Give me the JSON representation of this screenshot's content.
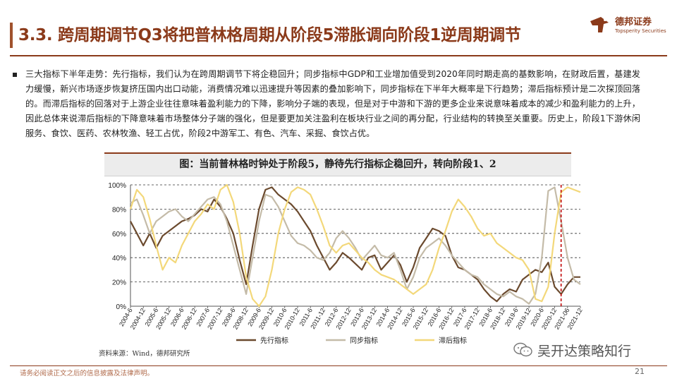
{
  "header": {
    "title": "3.3. 跨周期调节Q3将把普林格周期从阶段5滞胀调向阶段1逆周期调节",
    "logo_cn": "德邦证券",
    "logo_en": "Topsperity Securities"
  },
  "body": {
    "paragraph": "三大指标下半年走势：先行指标，我们认为在跨周期调节下将企稳回升；同步指标中GDP和工业增加值受到2020年同时期走高的基数影响，在财政后置，基建发力缓慢，新兴市场逐步恢复挤压国内出口动能，消费情况难以迅速提升等因素的叠加影响下，同步指标在下半年大概率是下行趋势；滞后指标预计是二次探顶回落的。而滞后指标的回落对于上游企业往往意味着盈利能力的下降，影响分子端的表现，但是对于中游和下游的更多企业来说意味着成本的减少和盈利能力的上升，因此总体来说滞后指标的下降意味着市场整体分子端的强化，但是要更加关注盈利在板块行业之间的再分配，行业结构的转换至关重要。历史上，阶段1下游休闲服务、食饮、医药、农林牧渔、轻工占优，阶段2中游军工、有色、汽车、采掘、食饮占优。"
  },
  "figure": {
    "title": "图：当前普林格时钟处于阶段5，静待先行指标企稳回升，转向阶段1、2",
    "source": "资料来源：Wind，德邦研究所"
  },
  "chart_data": {
    "type": "line",
    "title": "图：当前普林格时钟处于阶段5，静待先行指标企稳回升，转向阶段1、2",
    "ylim": [
      0,
      100
    ],
    "yticks": [
      "0%",
      "20%",
      "40%",
      "60%",
      "80%",
      "100%"
    ],
    "xlim": [
      2004.5,
      2022.0
    ],
    "xticks": [
      "2004-6",
      "2004-12",
      "2005-6",
      "2005-12",
      "2006-6",
      "2006-12",
      "2007-6",
      "2007-12",
      "2008-6",
      "2008-12",
      "2009-6",
      "2009-12",
      "2010-6",
      "2010-12",
      "2011-6",
      "2011-12",
      "2012-6",
      "2012-12",
      "2013-6",
      "2013-12",
      "2014-6",
      "2014-12",
      "2015-6",
      "2015-12",
      "2016-6",
      "2016-12",
      "2017-6",
      "2017-12",
      "2018-6",
      "2018-12",
      "2019-6",
      "2019-12",
      "2020-6",
      "2020-12",
      "2021-06",
      "2021-12"
    ],
    "grid": "horizontal dashed",
    "legend": "bottom",
    "marker_line": {
      "x": 2021.25,
      "style": "red dashed"
    },
    "series": [
      {
        "name": "先行指标",
        "color": "#6b4a2e",
        "x": [
          2004.5,
          2004.75,
          2005.0,
          2005.25,
          2005.5,
          2005.75,
          2006.0,
          2006.25,
          2006.5,
          2006.75,
          2007.0,
          2007.25,
          2007.5,
          2007.75,
          2008.0,
          2008.25,
          2008.5,
          2008.75,
          2009.0,
          2009.25,
          2009.5,
          2009.75,
          2010.0,
          2010.25,
          2010.5,
          2010.75,
          2011.0,
          2011.25,
          2011.5,
          2011.75,
          2012.0,
          2012.25,
          2012.5,
          2012.75,
          2013.0,
          2013.25,
          2013.5,
          2013.75,
          2014.0,
          2014.25,
          2014.5,
          2014.75,
          2015.0,
          2015.25,
          2015.5,
          2015.75,
          2016.0,
          2016.25,
          2016.5,
          2016.75,
          2017.0,
          2017.25,
          2017.5,
          2017.75,
          2018.0,
          2018.25,
          2018.5,
          2018.75,
          2019.0,
          2019.25,
          2019.5,
          2019.75,
          2020.0,
          2020.25,
          2020.5,
          2020.75,
          2021.0,
          2021.25,
          2021.5,
          2021.75,
          2022.0
        ],
        "values": [
          70,
          60,
          50,
          60,
          48,
          58,
          62,
          66,
          70,
          72,
          75,
          80,
          78,
          88,
          82,
          72,
          60,
          38,
          18,
          50,
          80,
          96,
          98,
          92,
          88,
          84,
          78,
          70,
          62,
          50,
          40,
          30,
          36,
          44,
          40,
          35,
          30,
          40,
          42,
          30,
          36,
          42,
          34,
          20,
          32,
          48,
          56,
          64,
          62,
          58,
          42,
          32,
          30,
          26,
          22,
          14,
          8,
          4,
          10,
          14,
          12,
          22,
          26,
          30,
          28,
          36,
          16,
          10,
          18,
          24,
          24
        ]
      },
      {
        "name": "同步指标",
        "color": "#c4bba8",
        "x": [
          2004.5,
          2004.75,
          2005.0,
          2005.25,
          2005.5,
          2005.75,
          2006.0,
          2006.25,
          2006.5,
          2006.75,
          2007.0,
          2007.25,
          2007.5,
          2007.75,
          2008.0,
          2008.25,
          2008.5,
          2008.75,
          2009.0,
          2009.25,
          2009.5,
          2009.75,
          2010.0,
          2010.25,
          2010.5,
          2010.75,
          2011.0,
          2011.25,
          2011.5,
          2011.75,
          2012.0,
          2012.25,
          2012.5,
          2012.75,
          2013.0,
          2013.25,
          2013.5,
          2013.75,
          2014.0,
          2014.25,
          2014.5,
          2014.75,
          2015.0,
          2015.25,
          2015.5,
          2015.75,
          2016.0,
          2016.25,
          2016.5,
          2016.75,
          2017.0,
          2017.25,
          2017.5,
          2017.75,
          2018.0,
          2018.25,
          2018.5,
          2018.75,
          2019.0,
          2019.25,
          2019.5,
          2019.75,
          2020.0,
          2020.25,
          2020.5,
          2020.75,
          2021.0,
          2021.25,
          2021.5,
          2021.75,
          2022.0
        ],
        "values": [
          85,
          88,
          75,
          60,
          70,
          74,
          78,
          80,
          74,
          70,
          76,
          82,
          88,
          90,
          84,
          70,
          50,
          30,
          10,
          40,
          70,
          92,
          90,
          82,
          70,
          58,
          52,
          50,
          46,
          40,
          38,
          44,
          56,
          62,
          56,
          48,
          38,
          44,
          50,
          42,
          40,
          44,
          30,
          14,
          24,
          40,
          48,
          52,
          56,
          50,
          42,
          36,
          30,
          26,
          24,
          18,
          14,
          10,
          8,
          12,
          8,
          6,
          2,
          10,
          40,
          95,
          98,
          70,
          40,
          22,
          18
        ]
      },
      {
        "name": "滞后指标",
        "color": "#f3d87a",
        "x": [
          2004.5,
          2004.75,
          2005.0,
          2005.25,
          2005.5,
          2005.75,
          2006.0,
          2006.25,
          2006.5,
          2006.75,
          2007.0,
          2007.25,
          2007.5,
          2007.75,
          2008.0,
          2008.25,
          2008.5,
          2008.75,
          2009.0,
          2009.25,
          2009.5,
          2009.75,
          2010.0,
          2010.25,
          2010.5,
          2010.75,
          2011.0,
          2011.25,
          2011.5,
          2011.75,
          2012.0,
          2012.25,
          2012.5,
          2012.75,
          2013.0,
          2013.25,
          2013.5,
          2013.75,
          2014.0,
          2014.25,
          2014.5,
          2014.75,
          2015.0,
          2015.25,
          2015.5,
          2015.75,
          2016.0,
          2016.25,
          2016.5,
          2016.75,
          2017.0,
          2017.25,
          2017.5,
          2017.75,
          2018.0,
          2018.25,
          2018.5,
          2018.75,
          2019.0,
          2019.25,
          2019.5,
          2019.75,
          2020.0,
          2020.25,
          2020.5,
          2020.75,
          2021.0,
          2021.25,
          2021.5,
          2021.75,
          2022.0
        ],
        "values": [
          80,
          96,
          90,
          72,
          50,
          30,
          40,
          36,
          50,
          60,
          70,
          76,
          84,
          80,
          96,
          100,
          86,
          60,
          24,
          6,
          0,
          8,
          30,
          60,
          80,
          94,
          98,
          96,
          92,
          80,
          66,
          50,
          44,
          50,
          52,
          46,
          40,
          36,
          30,
          26,
          24,
          22,
          18,
          14,
          10,
          14,
          18,
          30,
          48,
          62,
          78,
          88,
          82,
          74,
          64,
          58,
          60,
          52,
          48,
          44,
          40,
          38,
          30,
          6,
          4,
          16,
          60,
          94,
          98,
          96,
          94
        ]
      }
    ]
  },
  "watermark": {
    "text": "吴开达策略知行",
    "icon": "wechat-icon"
  },
  "footer": {
    "disclaimer": "请务必阅读正文之后的信息披露及法律声明。",
    "page": "21"
  }
}
